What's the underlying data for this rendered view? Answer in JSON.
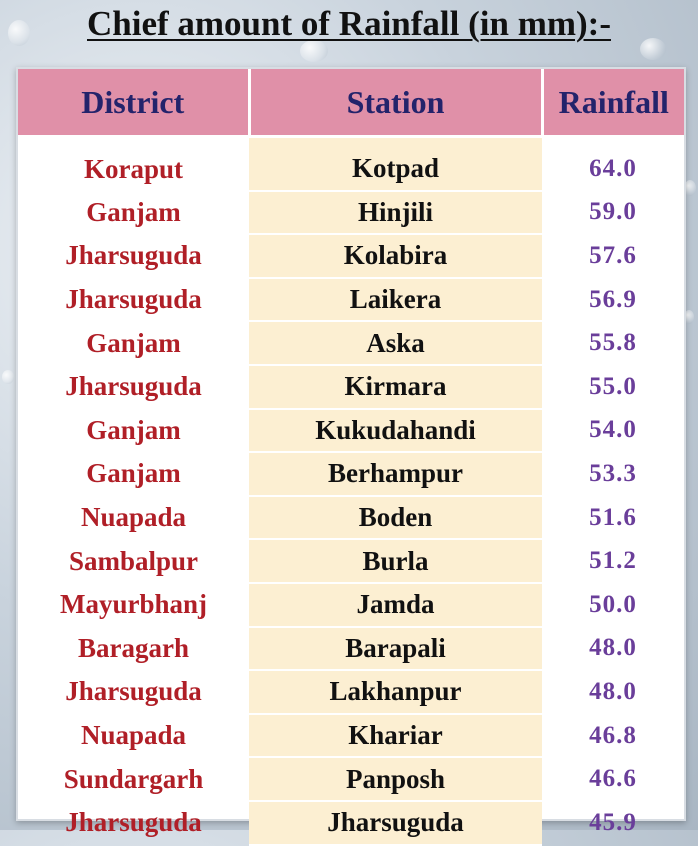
{
  "title": "Chief  amount of  Rainfall (in mm):-",
  "table": {
    "headers": [
      "District",
      "Station",
      "Rainfall"
    ],
    "rows": [
      {
        "district": "Koraput",
        "station": "Kotpad",
        "rainfall": "64.0"
      },
      {
        "district": "Ganjam",
        "station": "Hinjili",
        "rainfall": "59.0"
      },
      {
        "district": "Jharsuguda",
        "station": "Kolabira",
        "rainfall": "57.6"
      },
      {
        "district": "Jharsuguda",
        "station": "Laikera",
        "rainfall": "56.9"
      },
      {
        "district": "Ganjam",
        "station": "Aska",
        "rainfall": "55.8"
      },
      {
        "district": "Jharsuguda",
        "station": "Kirmara",
        "rainfall": "55.0"
      },
      {
        "district": "Ganjam",
        "station": "Kukudahandi",
        "rainfall": "54.0"
      },
      {
        "district": "Ganjam",
        "station": "Berhampur",
        "rainfall": "53.3"
      },
      {
        "district": "Nuapada",
        "station": "Boden",
        "rainfall": "51.6"
      },
      {
        "district": "Sambalpur",
        "station": "Burla",
        "rainfall": "51.2"
      },
      {
        "district": "Mayurbhanj",
        "station": "Jamda",
        "rainfall": "50.0"
      },
      {
        "district": "Baragarh",
        "station": "Barapali",
        "rainfall": "48.0"
      },
      {
        "district": "Jharsuguda",
        "station": "Lakhanpur",
        "rainfall": "48.0"
      },
      {
        "district": "Nuapada",
        "station": "Khariar",
        "rainfall": "46.8"
      },
      {
        "district": "Sundargarh",
        "station": "Panposh",
        "rainfall": "46.6"
      },
      {
        "district": "Jharsuguda",
        "station": "Jharsuguda",
        "rainfall": "45.9"
      }
    ]
  },
  "colors": {
    "header_bg": "#e090a8",
    "header_text": "#23236b",
    "district_text": "#b01f27",
    "station_bg": "#fcefd2",
    "rainfall_text": "#6a3e9a"
  }
}
